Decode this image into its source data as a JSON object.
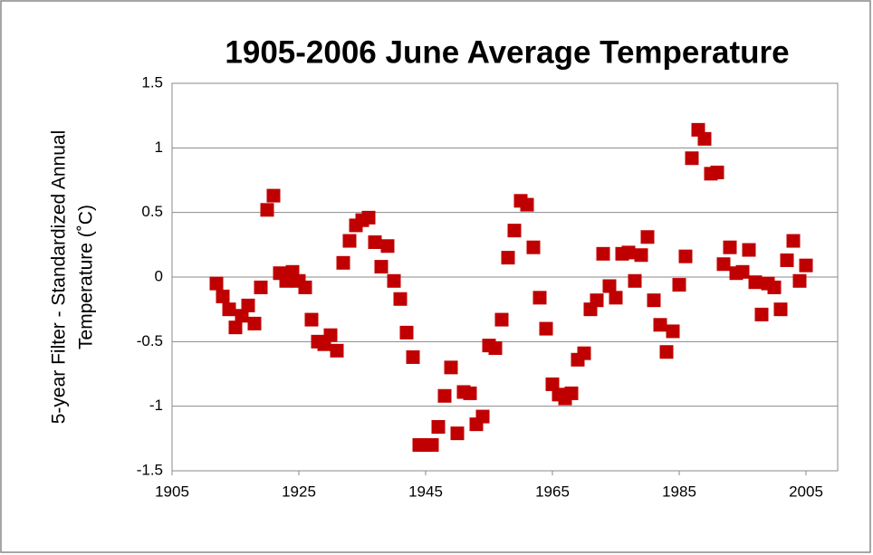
{
  "chart_data": {
    "type": "scatter",
    "title": "1905-2006 June Average Temperature",
    "ylabel": [
      "5-year Filter - Standardized Annual",
      "Temperature (˚C)"
    ],
    "color": "#c00000",
    "x": [
      1912,
      1913,
      1914,
      1915,
      1916,
      1917,
      1918,
      1919,
      1920,
      1921,
      1922,
      1923,
      1924,
      1925,
      1926,
      1927,
      1928,
      1929,
      1930,
      1931,
      1932,
      1933,
      1934,
      1935,
      1936,
      1937,
      1938,
      1939,
      1940,
      1941,
      1942,
      1943,
      1944,
      1945,
      1946,
      1947,
      1948,
      1949,
      1950,
      1951,
      1952,
      1953,
      1954,
      1955,
      1956,
      1957,
      1958,
      1959,
      1960,
      1961,
      1962,
      1963,
      1964,
      1965,
      1966,
      1967,
      1968,
      1969,
      1970,
      1971,
      1972,
      1973,
      1974,
      1975,
      1976,
      1977,
      1978,
      1979,
      1980,
      1981,
      1982,
      1983,
      1984,
      1985,
      1986,
      1987,
      1988,
      1989,
      1990,
      1991,
      1992,
      1993,
      1994,
      1995,
      1996,
      1997,
      1998,
      1999,
      2000,
      2001,
      2002,
      2003,
      2004,
      2005
    ],
    "values": [
      -0.05,
      -0.15,
      -0.25,
      -0.39,
      -0.3,
      -0.22,
      -0.36,
      -0.08,
      0.52,
      0.63,
      0.03,
      -0.03,
      0.04,
      -0.03,
      -0.08,
      -0.33,
      -0.5,
      -0.52,
      -0.45,
      -0.57,
      0.11,
      0.28,
      0.4,
      0.44,
      0.46,
      0.27,
      0.08,
      0.24,
      -0.03,
      -0.17,
      -0.43,
      -0.62,
      -1.3,
      -1.3,
      -1.3,
      -1.16,
      -0.92,
      -0.7,
      -1.21,
      -0.89,
      -0.9,
      -1.14,
      -1.08,
      -0.53,
      -0.55,
      -0.33,
      0.15,
      0.36,
      0.59,
      0.56,
      0.23,
      -0.16,
      -0.4,
      -0.83,
      -0.91,
      -0.94,
      -0.9,
      -0.64,
      -0.59,
      -0.25,
      -0.18,
      0.18,
      -0.07,
      -0.16,
      0.18,
      0.19,
      -0.03,
      0.17,
      0.31,
      -0.18,
      -0.37,
      -0.58,
      -0.42,
      -0.06,
      0.16,
      0.92,
      1.14,
      1.07,
      0.8,
      0.81,
      0.1,
      0.23,
      0.03,
      0.04,
      0.21,
      -0.04,
      -0.29,
      -0.05,
      -0.08,
      -0.25,
      0.13,
      0.28,
      -0.03,
      0.09
    ],
    "xlim": [
      1905,
      2010
    ],
    "xticks": [
      1905,
      1925,
      1945,
      1965,
      1985,
      2005
    ],
    "ylim": [
      -1.5,
      1.5
    ],
    "yticks": [
      -1.5,
      -1,
      -0.5,
      0,
      0.5,
      1,
      1.5
    ],
    "grid": true
  }
}
